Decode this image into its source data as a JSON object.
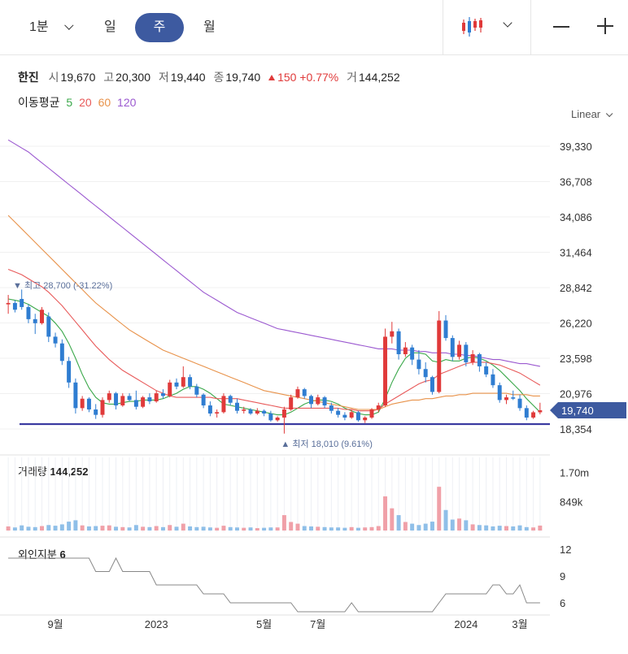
{
  "toolbar": {
    "interval_label": "1분",
    "periods": [
      "일",
      "주",
      "월"
    ],
    "active_period": "주",
    "chart_type_icon": "candlestick-icon",
    "zoom_out_icon": "minus-icon",
    "zoom_in_icon": "plus-icon"
  },
  "quote": {
    "name": "한진",
    "open_label": "시",
    "open": "19,670",
    "high_label": "고",
    "high": "20,300",
    "low_label": "저",
    "low": "19,440",
    "close_label": "종",
    "close": "19,740",
    "change": "150",
    "change_pct": "+0.77%",
    "volume_label": "거",
    "volume": "144,252"
  },
  "ma_legend": {
    "label": "이동평균",
    "periods": [
      {
        "text": "5",
        "color": "#3aa84a"
      },
      {
        "text": "20",
        "color": "#e85a5a"
      },
      {
        "text": "60",
        "color": "#e8924a"
      },
      {
        "text": "120",
        "color": "#9b59d0"
      }
    ]
  },
  "scale_mode": "Linear",
  "colors": {
    "up": "#e03a3a",
    "down": "#2f7dd1",
    "up_vol": "#f0a0a8",
    "down_vol": "#8fbfe8",
    "support": "#3a3aa0",
    "foreign": "#888888",
    "current_badge": "#3d5aa0"
  },
  "chart_data": {
    "type": "candlestick",
    "y_ticks": [
      "39,330",
      "36,708",
      "34,086",
      "31,464",
      "28,842",
      "26,220",
      "23,598",
      "20,976",
      "18,354"
    ],
    "y_tick_values": [
      39330,
      36708,
      34086,
      31464,
      28842,
      26220,
      23598,
      20976,
      18354
    ],
    "x_ticks": [
      {
        "label": "9월",
        "index": 7
      },
      {
        "label": "2023",
        "index": 22
      },
      {
        "label": "5월",
        "index": 38
      },
      {
        "label": "7월",
        "index": 46
      },
      {
        "label": "2024",
        "index": 68
      },
      {
        "label": "3월",
        "index": 76
      }
    ],
    "candles": [
      [
        27600,
        28300,
        26900,
        27700
      ],
      [
        27700,
        27900,
        27000,
        27200
      ],
      [
        28000,
        28700,
        27200,
        27400
      ],
      [
        27400,
        27600,
        26200,
        26500
      ],
      [
        26500,
        26900,
        25400,
        26200
      ],
      [
        26200,
        27400,
        26100,
        27200
      ],
      [
        26700,
        27000,
        24800,
        25200
      ],
      [
        25200,
        25500,
        24400,
        24700
      ],
      [
        24700,
        25000,
        23100,
        23400
      ],
      [
        23400,
        23700,
        21400,
        21800
      ],
      [
        21800,
        22100,
        19500,
        19900
      ],
      [
        19900,
        20800,
        19700,
        20600
      ],
      [
        20600,
        20700,
        19600,
        19800
      ],
      [
        19800,
        20200,
        19100,
        19400
      ],
      [
        19400,
        20700,
        19200,
        20500
      ],
      [
        20500,
        21200,
        20300,
        21000
      ],
      [
        21000,
        21100,
        19800,
        20100
      ],
      [
        20100,
        21000,
        20000,
        20800
      ],
      [
        20800,
        21000,
        20400,
        20500
      ],
      [
        20500,
        21200,
        19800,
        20000
      ],
      [
        20000,
        20800,
        19900,
        20700
      ],
      [
        20700,
        21000,
        20200,
        20400
      ],
      [
        20400,
        21200,
        20300,
        21000
      ],
      [
        21000,
        21300,
        20600,
        20800
      ],
      [
        20800,
        22000,
        20700,
        21800
      ],
      [
        21800,
        22100,
        21300,
        21500
      ],
      [
        21500,
        23000,
        21400,
        22200
      ],
      [
        22200,
        22400,
        21300,
        21500
      ],
      [
        21500,
        21700,
        20700,
        20900
      ],
      [
        20900,
        21000,
        19900,
        20100
      ],
      [
        20100,
        20400,
        19300,
        19500
      ],
      [
        19500,
        19800,
        19200,
        19600
      ],
      [
        19600,
        21000,
        19500,
        20800
      ],
      [
        20800,
        20900,
        20100,
        20300
      ],
      [
        20300,
        20600,
        19500,
        19700
      ],
      [
        19700,
        20000,
        19500,
        19800
      ],
      [
        19800,
        19900,
        19400,
        19500
      ],
      [
        19500,
        19900,
        19400,
        19700
      ],
      [
        19700,
        19800,
        19300,
        19500
      ],
      [
        19500,
        19700,
        18900,
        19000
      ],
      [
        19000,
        19300,
        18900,
        19200
      ],
      [
        19200,
        20000,
        18010,
        19800
      ],
      [
        19800,
        20900,
        19700,
        20700
      ],
      [
        20700,
        21500,
        20600,
        21300
      ],
      [
        21300,
        21400,
        20600,
        20800
      ],
      [
        20800,
        20900,
        19900,
        20200
      ],
      [
        20200,
        20900,
        20100,
        20700
      ],
      [
        20700,
        20800,
        19900,
        20100
      ],
      [
        20100,
        20300,
        19500,
        19700
      ],
      [
        19700,
        19900,
        19200,
        19400
      ],
      [
        19400,
        19600,
        19000,
        19200
      ],
      [
        19200,
        19800,
        19100,
        19600
      ],
      [
        19600,
        19700,
        18900,
        19000
      ],
      [
        19000,
        19300,
        18800,
        19200
      ],
      [
        19200,
        19900,
        19100,
        19800
      ],
      [
        19800,
        20300,
        19600,
        20100
      ],
      [
        20100,
        25800,
        20000,
        25200
      ],
      [
        25200,
        26300,
        24700,
        25600
      ],
      [
        25600,
        25800,
        23500,
        23900
      ],
      [
        23900,
        24800,
        23700,
        24400
      ],
      [
        24400,
        24600,
        23100,
        23500
      ],
      [
        23500,
        24200,
        22400,
        22800
      ],
      [
        22800,
        23300,
        21800,
        22200
      ],
      [
        22200,
        22300,
        20900,
        21100
      ],
      [
        21100,
        27100,
        21000,
        26400
      ],
      [
        26400,
        26800,
        24900,
        25100
      ],
      [
        25100,
        25300,
        23400,
        23700
      ],
      [
        23700,
        24900,
        23500,
        24600
      ],
      [
        24600,
        24800,
        23000,
        23300
      ],
      [
        23300,
        24200,
        23100,
        23900
      ],
      [
        23900,
        24000,
        22600,
        23000
      ],
      [
        23000,
        23300,
        22200,
        22400
      ],
      [
        22400,
        22800,
        21400,
        21600
      ],
      [
        21600,
        21800,
        20300,
        20500
      ],
      [
        20500,
        20900,
        20200,
        20700
      ],
      [
        20700,
        21200,
        20500,
        20600
      ],
      [
        20600,
        20900,
        19700,
        19900
      ],
      [
        19900,
        20100,
        19000,
        19200
      ],
      [
        19200,
        19700,
        19100,
        19590
      ],
      [
        19590,
        20300,
        19440,
        19740
      ]
    ],
    "ma": {
      "5": [
        28000,
        27900,
        27800,
        27600,
        27300,
        27000,
        26700,
        26200,
        25600,
        24700,
        23600,
        22400,
        21400,
        20700,
        20300,
        20200,
        20200,
        20300,
        20400,
        20400,
        20500,
        20500,
        20500,
        20600,
        20800,
        21000,
        21300,
        21500,
        21500,
        21300,
        21000,
        20600,
        20200,
        20100,
        20000,
        19900,
        19800,
        19700,
        19600,
        19500,
        19400,
        19400,
        19600,
        19900,
        20200,
        20400,
        20500,
        20500,
        20400,
        20200,
        19900,
        19700,
        19500,
        19400,
        19400,
        19600,
        20600,
        21800,
        22800,
        23600,
        24000,
        24000,
        23900,
        23400,
        23300,
        23500,
        23400,
        23400,
        23600,
        23700,
        23600,
        23400,
        23100,
        22700,
        22200,
        21700,
        21200,
        20600,
        20100,
        19600
      ],
      "20": [
        30200,
        30000,
        29800,
        29500,
        29200,
        28900,
        28500,
        28000,
        27500,
        26900,
        26300,
        25700,
        25100,
        24500,
        24000,
        23500,
        23100,
        22700,
        22400,
        22100,
        21800,
        21500,
        21200,
        21000,
        20800,
        20700,
        20700,
        20700,
        20700,
        20700,
        20700,
        20600,
        20600,
        20600,
        20600,
        20500,
        20400,
        20300,
        20200,
        20100,
        20000,
        19900,
        19900,
        19900,
        19900,
        19900,
        19900,
        19900,
        19900,
        19900,
        19800,
        19800,
        19700,
        19700,
        19700,
        19800,
        20200,
        20500,
        20800,
        21100,
        21400,
        21700,
        21900,
        22000,
        22400,
        22600,
        22800,
        23000,
        23200,
        23300,
        23300,
        23300,
        23200,
        23100,
        22900,
        22700,
        22500,
        22200,
        21900,
        21600
      ],
      "60": [
        34200,
        33700,
        33200,
        32700,
        32200,
        31700,
        31200,
        30700,
        30200,
        29700,
        29200,
        28700,
        28200,
        27700,
        27300,
        26900,
        26500,
        26100,
        25700,
        25400,
        25100,
        24800,
        24500,
        24200,
        24000,
        23800,
        23600,
        23400,
        23200,
        23000,
        22800,
        22600,
        22400,
        22200,
        22000,
        21800,
        21600,
        21400,
        21200,
        21100,
        21000,
        20900,
        20800,
        20700,
        20600,
        20500,
        20400,
        20300,
        20200,
        20100,
        20000,
        19900,
        19800,
        19800,
        19800,
        19800,
        20000,
        20200,
        20300,
        20400,
        20500,
        20500,
        20600,
        20600,
        20700,
        20800,
        20800,
        20900,
        20900,
        21000,
        21000,
        21000,
        21000,
        21000,
        21000,
        20900,
        20900,
        20900,
        20800,
        20800
      ],
      "120": [
        39800,
        39500,
        39200,
        38900,
        38500,
        38100,
        37700,
        37300,
        36900,
        36500,
        36100,
        35700,
        35300,
        34900,
        34500,
        34100,
        33700,
        33300,
        32900,
        32500,
        32100,
        31700,
        31300,
        30900,
        30500,
        30100,
        29700,
        29300,
        28900,
        28500,
        28200,
        27900,
        27600,
        27300,
        27000,
        26800,
        26600,
        26400,
        26200,
        26000,
        25800,
        25700,
        25600,
        25500,
        25400,
        25300,
        25200,
        25100,
        25000,
        24900,
        24800,
        24700,
        24600,
        24500,
        24400,
        24300,
        24300,
        24300,
        24200,
        24200,
        24200,
        24100,
        24100,
        24000,
        24000,
        24000,
        23900,
        23900,
        23800,
        23800,
        23700,
        23600,
        23500,
        23500,
        23400,
        23300,
        23200,
        23200,
        23100,
        23000
      ]
    },
    "high_marker": {
      "index": 2,
      "text": "최고 28,700 (-31.22%)"
    },
    "low_marker": {
      "index": 41,
      "text": "최저 18,010 (9.61%)"
    },
    "current_price": "19,740",
    "support_level": 18354,
    "volume": {
      "title": "거래량",
      "value": "144,252",
      "y_ticks": [
        "1.70m",
        "849k"
      ],
      "y_tick_values": [
        1700000,
        849000
      ],
      "bars": [
        120000,
        90000,
        150000,
        110000,
        100000,
        130000,
        160000,
        140000,
        180000,
        260000,
        300000,
        150000,
        120000,
        130000,
        140000,
        150000,
        110000,
        100000,
        90000,
        160000,
        110000,
        100000,
        130000,
        100000,
        160000,
        110000,
        200000,
        120000,
        100000,
        110000,
        90000,
        80000,
        140000,
        100000,
        90000,
        80000,
        90000,
        70000,
        80000,
        90000,
        90000,
        450000,
        250000,
        200000,
        130000,
        120000,
        110000,
        100000,
        90000,
        90000,
        80000,
        100000,
        80000,
        90000,
        100000,
        130000,
        1000000,
        650000,
        450000,
        250000,
        200000,
        160000,
        200000,
        260000,
        1280000,
        600000,
        320000,
        350000,
        300000,
        180000,
        160000,
        150000,
        120000,
        140000,
        130000,
        120000,
        150000,
        100000,
        90000,
        144252
      ]
    },
    "foreign_ratio": {
      "title": "외인지분",
      "value": "6",
      "y_ticks": [
        "12",
        "9",
        "6"
      ],
      "y_tick_values": [
        12,
        9,
        6
      ],
      "values": [
        11,
        11,
        11,
        11,
        11,
        11,
        11,
        11,
        11,
        11,
        11,
        11,
        11,
        9.5,
        9.5,
        9.5,
        11,
        9.5,
        9.5,
        9.5,
        9.5,
        9.5,
        8,
        8,
        8,
        8,
        8,
        8,
        8,
        7,
        7,
        7,
        7,
        6,
        6,
        6,
        6,
        6,
        6,
        6,
        6,
        6,
        6,
        5,
        5,
        5,
        5,
        5,
        5,
        5,
        5,
        6,
        5,
        5,
        5,
        5,
        5,
        5,
        5,
        5,
        5,
        5,
        5,
        5,
        6,
        7,
        7,
        7,
        7,
        7,
        7,
        7,
        8,
        8,
        7,
        7,
        8,
        6,
        6,
        6
      ]
    }
  }
}
